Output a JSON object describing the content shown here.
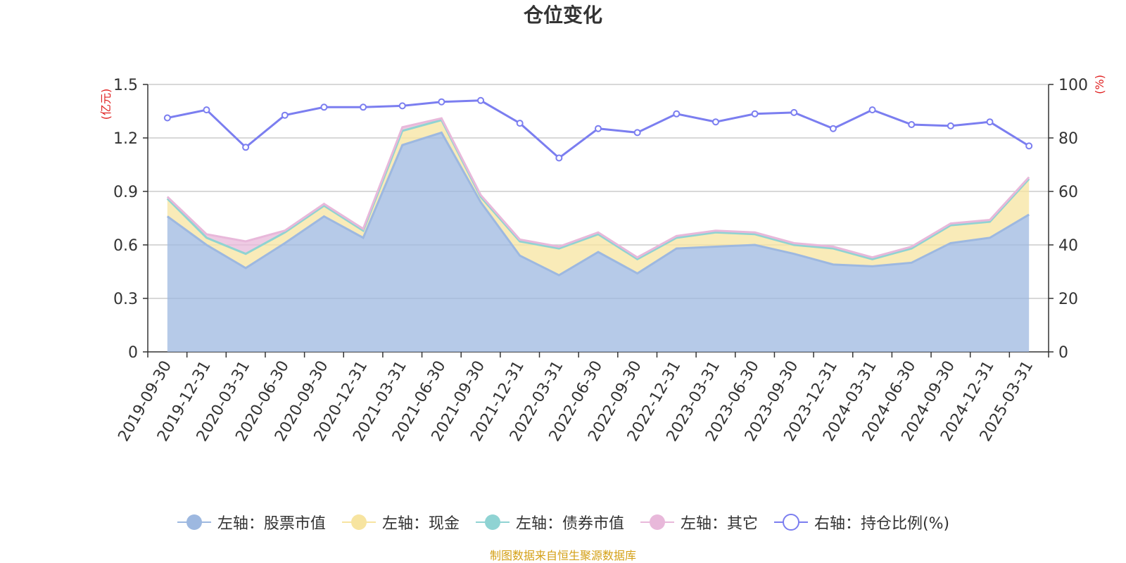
{
  "chart_data": {
    "type": "area",
    "title": "仓位变化",
    "left_axis_unit": "(亿元)",
    "right_axis_unit": "(%)",
    "categories": [
      "2019-09-30",
      "2019-12-31",
      "2020-03-31",
      "2020-06-30",
      "2020-09-30",
      "2020-12-31",
      "2021-03-31",
      "2021-06-30",
      "2021-09-30",
      "2021-12-31",
      "2022-03-31",
      "2022-06-30",
      "2022-09-30",
      "2022-12-31",
      "2023-03-31",
      "2023-06-30",
      "2023-09-30",
      "2023-12-31",
      "2024-03-31",
      "2024-06-30",
      "2024-09-30",
      "2024-12-31",
      "2025-03-31"
    ],
    "left_ylim": [
      0,
      1.5
    ],
    "left_ticks": [
      "0",
      "0.3",
      "0.6",
      "0.9",
      "1.2",
      "1.5"
    ],
    "right_ylim": [
      0,
      100
    ],
    "right_ticks": [
      "0",
      "20",
      "40",
      "60",
      "80",
      "100"
    ],
    "grid": true,
    "legend_position": "bottom",
    "series": [
      {
        "name": "左轴：股票市值",
        "axis": "left",
        "kind": "stacked-area",
        "color": "#9db8e0",
        "values": [
          0.76,
          0.6,
          0.47,
          0.61,
          0.76,
          0.64,
          1.16,
          1.23,
          0.84,
          0.54,
          0.43,
          0.56,
          0.44,
          0.58,
          0.59,
          0.6,
          0.55,
          0.49,
          0.48,
          0.5,
          0.61,
          0.64,
          0.77
        ]
      },
      {
        "name": "左轴：现金",
        "axis": "left",
        "kind": "stacked-area",
        "color": "#f7e4a0",
        "values": [
          0.1,
          0.04,
          0.08,
          0.06,
          0.06,
          0.04,
          0.08,
          0.07,
          0.03,
          0.08,
          0.15,
          0.1,
          0.08,
          0.06,
          0.08,
          0.06,
          0.05,
          0.09,
          0.04,
          0.08,
          0.1,
          0.09,
          0.2
        ]
      },
      {
        "name": "左轴：债券市值",
        "axis": "left",
        "kind": "stacked-area",
        "color": "#8fd3d3",
        "values": [
          0,
          0,
          0,
          0,
          0,
          0,
          0,
          0,
          0,
          0,
          0,
          0,
          0,
          0,
          0,
          0,
          0,
          0,
          0,
          0,
          0,
          0,
          0
        ]
      },
      {
        "name": "左轴：其它",
        "axis": "left",
        "kind": "stacked-area",
        "color": "#e8b8da",
        "values": [
          0.01,
          0.02,
          0.07,
          0.01,
          0.01,
          0.01,
          0.02,
          0.01,
          0.01,
          0.01,
          0.01,
          0.01,
          0.01,
          0.01,
          0.01,
          0.01,
          0.01,
          0.01,
          0.01,
          0.01,
          0.01,
          0.01,
          0.01
        ]
      },
      {
        "name": "右轴：持仓比例(%)",
        "axis": "right",
        "kind": "line",
        "color": "#7b7ef0",
        "values": [
          87.5,
          90.5,
          76.5,
          88.5,
          91.5,
          91.5,
          92,
          93.5,
          94,
          85.5,
          72.5,
          83.5,
          82,
          89,
          86,
          89,
          89.5,
          83.5,
          90.5,
          85,
          84.5,
          86,
          77
        ]
      }
    ]
  },
  "source_note": "制图数据来自恒生聚源数据库"
}
